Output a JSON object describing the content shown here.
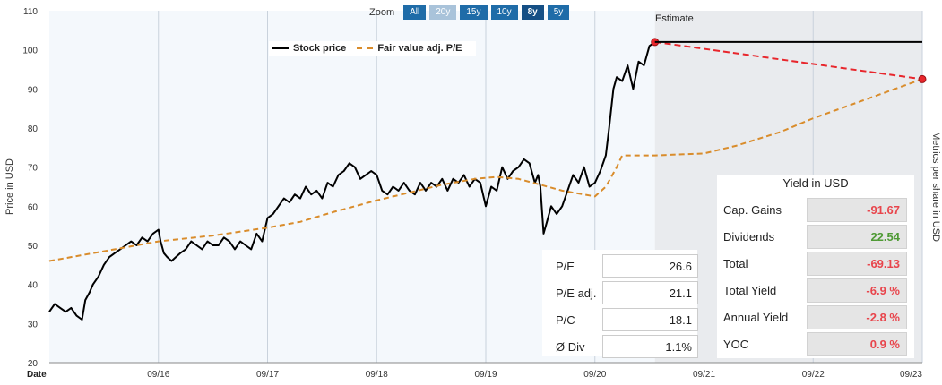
{
  "zoom": {
    "label": "Zoom",
    "buttons": [
      {
        "label": "All",
        "state": "normal"
      },
      {
        "label": "20y",
        "state": "muted"
      },
      {
        "label": "15y",
        "state": "normal"
      },
      {
        "label": "10y",
        "state": "normal"
      },
      {
        "label": "8y",
        "state": "active"
      },
      {
        "label": "5y",
        "state": "normal"
      }
    ]
  },
  "colors": {
    "price_line": "#000000",
    "fair_value_line": "#d98c2b",
    "estimate_line": "#e8262c",
    "estimate_region": "#e9ebee",
    "plot_bg": "#f4f8fc",
    "zoom_button": "#1f6ca8"
  },
  "estimate_label": "Estimate",
  "metrics": [
    {
      "label": "P/E",
      "value": "26.6"
    },
    {
      "label": "P/E adj.",
      "value": "21.1"
    },
    {
      "label": "P/C",
      "value": "18.1"
    },
    {
      "label": "Ø Div",
      "value": "1.1%"
    }
  ],
  "yield": {
    "title": "Yield in USD",
    "rows": [
      {
        "label": "Cap. Gains",
        "value": "-91.67",
        "sign": "neg"
      },
      {
        "label": "Dividends",
        "value": "22.54",
        "sign": "pos"
      },
      {
        "label": "Total",
        "value": "-69.13",
        "sign": "neg"
      },
      {
        "label": "Total Yield",
        "value": "-6.9 %",
        "sign": "neg"
      },
      {
        "label": "Annual Yield",
        "value": "-2.8 %",
        "sign": "neg"
      },
      {
        "label": "YOC",
        "value": "0.9 %",
        "sign": "neg"
      }
    ]
  },
  "chart_data": {
    "type": "line",
    "xlabel": "Date",
    "ylabel": "Price in USD",
    "ylabel_right": "Metrics per share in USD",
    "ylim": [
      20,
      110
    ],
    "yticks": [
      20,
      30,
      40,
      50,
      60,
      70,
      80,
      90,
      100,
      110
    ],
    "xlim": [
      2015.0,
      2023.0
    ],
    "xticks": [
      {
        "x": 2016.0,
        "label": "09/16"
      },
      {
        "x": 2017.0,
        "label": "09/17"
      },
      {
        "x": 2018.0,
        "label": "09/18"
      },
      {
        "x": 2019.0,
        "label": "09/19"
      },
      {
        "x": 2020.0,
        "label": "09/20"
      },
      {
        "x": 2021.0,
        "label": "09/21"
      },
      {
        "x": 2022.0,
        "label": "09/22"
      },
      {
        "x": 2023.0,
        "label": "09/23"
      }
    ],
    "estimate_start": 2020.55,
    "grid": true,
    "legend_position": "top-left",
    "series": [
      {
        "name": "Stock price",
        "style": "solid",
        "x": [
          2015.0,
          2015.05,
          2015.1,
          2015.15,
          2015.2,
          2015.25,
          2015.3,
          2015.33,
          2015.37,
          2015.4,
          2015.45,
          2015.5,
          2015.55,
          2015.6,
          2015.65,
          2015.7,
          2015.75,
          2015.8,
          2015.85,
          2015.9,
          2015.95,
          2016.0,
          2016.02,
          2016.05,
          2016.08,
          2016.12,
          2016.16,
          2016.2,
          2016.25,
          2016.3,
          2016.35,
          2016.4,
          2016.45,
          2016.5,
          2016.55,
          2016.6,
          2016.65,
          2016.7,
          2016.75,
          2016.8,
          2016.85,
          2016.9,
          2016.95,
          2017.0,
          2017.05,
          2017.1,
          2017.15,
          2017.2,
          2017.25,
          2017.3,
          2017.35,
          2017.4,
          2017.45,
          2017.5,
          2017.55,
          2017.6,
          2017.65,
          2017.7,
          2017.75,
          2017.8,
          2017.85,
          2017.9,
          2017.95,
          2018.0,
          2018.05,
          2018.1,
          2018.15,
          2018.2,
          2018.25,
          2018.3,
          2018.35,
          2018.4,
          2018.45,
          2018.5,
          2018.55,
          2018.6,
          2018.65,
          2018.7,
          2018.75,
          2018.8,
          2018.85,
          2018.9,
          2018.95,
          2019.0,
          2019.05,
          2019.1,
          2019.15,
          2019.2,
          2019.25,
          2019.3,
          2019.35,
          2019.4,
          2019.45,
          2019.48,
          2019.5,
          2019.53,
          2019.56,
          2019.6,
          2019.65,
          2019.7,
          2019.75,
          2019.8,
          2019.85,
          2019.9,
          2019.95,
          2020.0,
          2020.05,
          2020.1,
          2020.13,
          2020.17,
          2020.2,
          2020.25,
          2020.3,
          2020.35,
          2020.4,
          2020.45,
          2020.5,
          2020.55
        ],
        "values": [
          33,
          35,
          34,
          33,
          34,
          32,
          31,
          36,
          38,
          40,
          42,
          45,
          47,
          48,
          49,
          50,
          51,
          50,
          52,
          51,
          53,
          54,
          51,
          48,
          47,
          46,
          47,
          48,
          49,
          51,
          50,
          49,
          51,
          50,
          50,
          52,
          51,
          49,
          51,
          50,
          49,
          53,
          51,
          57,
          58,
          60,
          62,
          61,
          63,
          62,
          65,
          63,
          64,
          62,
          66,
          65,
          68,
          69,
          71,
          70,
          67,
          68,
          69,
          68,
          64,
          63,
          65,
          64,
          66,
          64,
          63,
          66,
          64,
          66,
          65,
          67,
          64,
          67,
          66,
          68,
          65,
          67,
          66,
          60,
          65,
          64,
          70,
          67,
          69,
          70,
          72,
          71,
          66,
          68,
          65,
          53,
          56,
          60,
          58,
          60,
          64,
          68,
          66,
          70,
          65,
          66,
          69,
          73,
          80,
          90,
          93,
          92,
          96,
          90,
          97,
          96,
          101,
          102
        ]
      },
      {
        "name": "Fair value adj. P/E",
        "style": "dashed",
        "x": [
          2015.0,
          2015.5,
          2016.0,
          2016.5,
          2017.0,
          2017.3,
          2017.6,
          2018.0,
          2018.3,
          2018.6,
          2018.9,
          2019.1,
          2019.3,
          2019.5,
          2019.7,
          2019.9,
          2020.0,
          2020.1,
          2020.2,
          2020.25,
          2020.35,
          2020.55,
          2021.0,
          2021.3,
          2021.7,
          2022.0,
          2022.5,
          2023.0
        ],
        "values": [
          46,
          48.5,
          51,
          52.5,
          54.5,
          56,
          58.5,
          61.5,
          63.5,
          65.5,
          67,
          67.5,
          67,
          65.5,
          64,
          63,
          62.5,
          65,
          70,
          73,
          73,
          73,
          73.5,
          75.5,
          79,
          82.5,
          87.5,
          92.5
        ]
      },
      {
        "name": "",
        "style": "estimate",
        "x": [
          2020.55,
          2023.0
        ],
        "values": [
          102,
          92.5
        ]
      },
      {
        "name": "",
        "style": "flat",
        "x": [
          2020.55,
          2023.0
        ],
        "values": [
          102,
          102
        ]
      }
    ]
  }
}
